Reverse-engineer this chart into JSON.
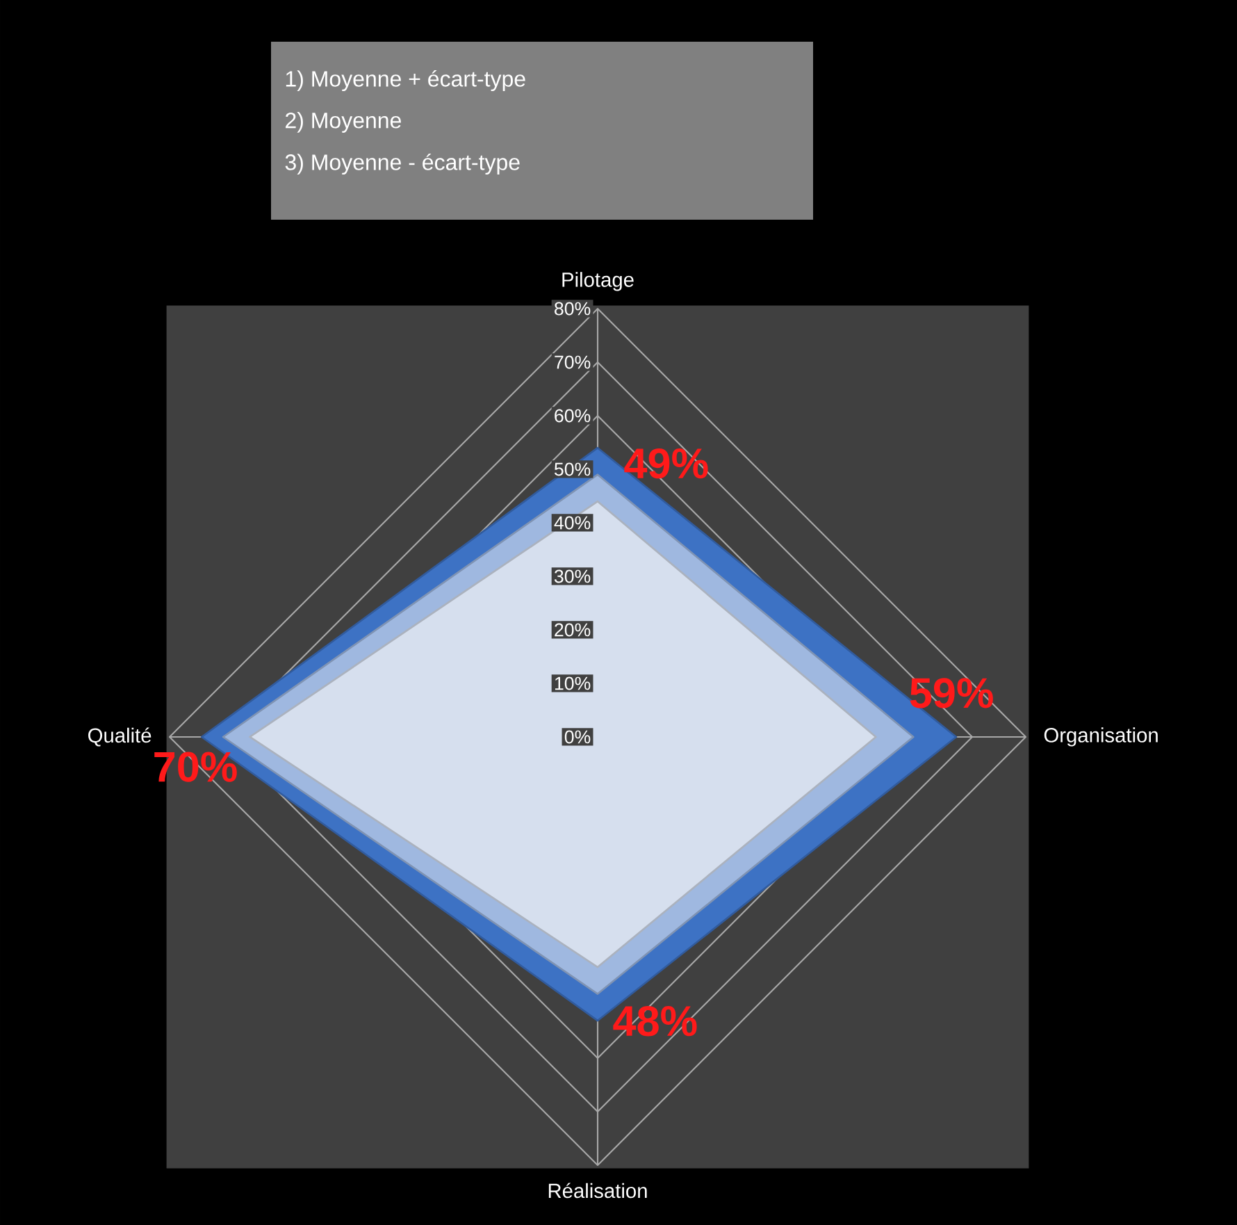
{
  "chart_data": {
    "type": "radar",
    "categories": [
      "Pilotage",
      "Organisation",
      "Réalisation",
      "Qualité"
    ],
    "series": [
      {
        "color": "#3d72c4",
        "values": [
          54,
          67,
          53,
          74
        ]
      },
      {
        "color": "#9fb8e0",
        "values": [
          49,
          59,
          48,
          70
        ],
        "value_labels": [
          "49%",
          "59%",
          "48%",
          "70%"
        ]
      },
      {
        "color": "#d6dfee",
        "values": [
          44,
          52,
          43,
          65
        ]
      }
    ],
    "ylim": [
      0,
      80
    ],
    "yticks": [
      {
        "value": 0,
        "label": "0%"
      },
      {
        "value": 10,
        "label": "10%"
      },
      {
        "value": 20,
        "label": "20%"
      },
      {
        "value": 30,
        "label": "30%"
      },
      {
        "value": 40,
        "label": "40%"
      },
      {
        "value": 50,
        "label": "50%"
      },
      {
        "value": 60,
        "label": "60%"
      },
      {
        "value": 70,
        "label": "70%"
      },
      {
        "value": 80,
        "label": "80%"
      }
    ],
    "grid": true,
    "annotations": [
      "1) Moyenne + écart-type",
      "2) Moyenne",
      "3) Moyenne - écart-type"
    ]
  }
}
